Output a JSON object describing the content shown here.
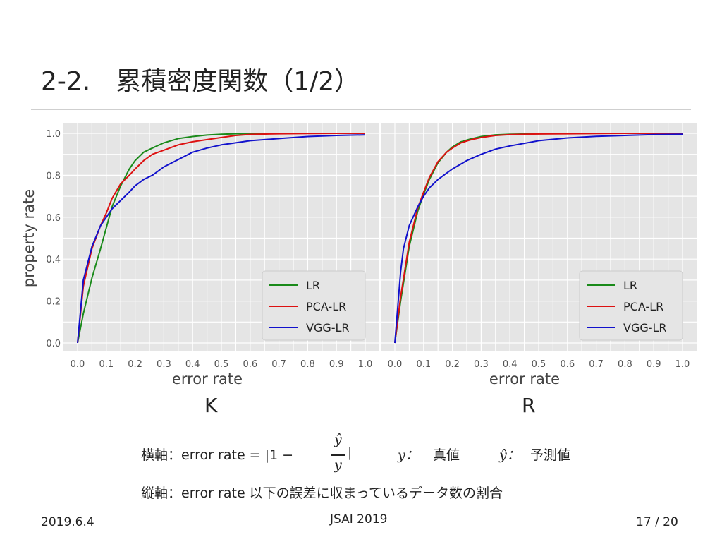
{
  "slide": {
    "title": "2-2.　累積密度関数（1/2）",
    "footer_date": "2019.6.4",
    "footer_conf": "JSAI 2019",
    "footer_page": "17 / 20"
  },
  "panels": {
    "left_label": "K",
    "right_label": "R"
  },
  "notes": {
    "x_axis_prefix": "横軸：error rate = |1 −",
    "x_axis_close": "|",
    "frac_num": "ŷ",
    "frac_den": "y",
    "y_symbol": "y：",
    "y_meaning": "真値",
    "yhat_symbol": "ŷ：",
    "yhat_meaning": "予測値",
    "y_axis_desc": "縦軸：error rate 以下の誤差に収まっているデータ数の割合"
  },
  "chart_data": [
    {
      "type": "line",
      "xlabel": "error rate",
      "ylabel": "property rate",
      "xlim": [
        0.0,
        1.0
      ],
      "ylim": [
        0.0,
        1.0
      ],
      "xticks": [
        "0.0",
        "0.1",
        "0.2",
        "0.3",
        "0.4",
        "0.5",
        "0.6",
        "0.7",
        "0.8",
        "0.9",
        "1.0"
      ],
      "yticks": [
        "0.0",
        "0.2",
        "0.4",
        "0.6",
        "0.8",
        "1.0"
      ],
      "grid": true,
      "legend": "bottom-right",
      "series": [
        {
          "name": "LR",
          "color": "#1a8a1a",
          "x": [
            0,
            0.02,
            0.05,
            0.08,
            0.1,
            0.12,
            0.15,
            0.18,
            0.2,
            0.23,
            0.26,
            0.3,
            0.35,
            0.4,
            0.45,
            0.5,
            0.55,
            0.6,
            0.7,
            0.8,
            0.9,
            1.0
          ],
          "y": [
            0,
            0.14,
            0.31,
            0.45,
            0.55,
            0.65,
            0.75,
            0.83,
            0.87,
            0.91,
            0.93,
            0.955,
            0.975,
            0.985,
            0.992,
            0.996,
            0.998,
            0.999,
            1.0,
            1.0,
            1.0,
            1.0
          ]
        },
        {
          "name": "PCA-LR",
          "color": "#dd1111",
          "x": [
            0,
            0.02,
            0.05,
            0.08,
            0.1,
            0.12,
            0.15,
            0.18,
            0.2,
            0.23,
            0.26,
            0.3,
            0.35,
            0.4,
            0.45,
            0.5,
            0.55,
            0.6,
            0.7,
            0.8,
            0.9,
            1.0
          ],
          "y": [
            0,
            0.27,
            0.45,
            0.56,
            0.62,
            0.69,
            0.76,
            0.8,
            0.83,
            0.87,
            0.9,
            0.92,
            0.945,
            0.96,
            0.97,
            0.98,
            0.99,
            0.995,
            0.998,
            0.999,
            1.0,
            1.0
          ]
        },
        {
          "name": "VGG-LR",
          "color": "#1111cc",
          "x": [
            0,
            0.02,
            0.05,
            0.08,
            0.1,
            0.12,
            0.15,
            0.18,
            0.2,
            0.23,
            0.26,
            0.3,
            0.35,
            0.4,
            0.45,
            0.5,
            0.55,
            0.6,
            0.7,
            0.8,
            0.9,
            1.0
          ],
          "y": [
            0,
            0.3,
            0.46,
            0.56,
            0.6,
            0.64,
            0.68,
            0.72,
            0.75,
            0.78,
            0.8,
            0.84,
            0.875,
            0.91,
            0.93,
            0.945,
            0.955,
            0.965,
            0.975,
            0.985,
            0.99,
            0.993
          ]
        }
      ]
    },
    {
      "type": "line",
      "xlabel": "error rate",
      "ylabel": "",
      "xlim": [
        0.0,
        1.0
      ],
      "ylim": [
        0.0,
        1.0
      ],
      "xticks": [
        "0.0",
        "0.1",
        "0.2",
        "0.3",
        "0.4",
        "0.5",
        "0.6",
        "0.7",
        "0.8",
        "0.9",
        "1.0"
      ],
      "yticks": [],
      "grid": true,
      "legend": "bottom-right",
      "series": [
        {
          "name": "LR",
          "color": "#1a8a1a",
          "x": [
            0,
            0.02,
            0.05,
            0.08,
            0.1,
            0.12,
            0.15,
            0.18,
            0.2,
            0.23,
            0.26,
            0.3,
            0.35,
            0.4,
            0.5,
            0.6,
            0.7,
            0.8,
            0.9,
            1.0
          ],
          "y": [
            0,
            0.2,
            0.46,
            0.63,
            0.71,
            0.78,
            0.86,
            0.91,
            0.935,
            0.96,
            0.972,
            0.985,
            0.993,
            0.996,
            0.998,
            0.999,
            1.0,
            1.0,
            1.0,
            1.0
          ]
        },
        {
          "name": "PCA-LR",
          "color": "#dd1111",
          "x": [
            0,
            0.02,
            0.05,
            0.08,
            0.1,
            0.12,
            0.15,
            0.18,
            0.2,
            0.23,
            0.26,
            0.3,
            0.35,
            0.4,
            0.5,
            0.6,
            0.7,
            0.8,
            0.9,
            1.0
          ],
          "y": [
            0,
            0.22,
            0.48,
            0.645,
            0.72,
            0.79,
            0.865,
            0.91,
            0.93,
            0.955,
            0.968,
            0.98,
            0.99,
            0.994,
            0.997,
            0.998,
            0.999,
            1.0,
            1.0,
            1.0
          ]
        },
        {
          "name": "VGG-LR",
          "color": "#1111cc",
          "x": [
            0,
            0.02,
            0.03,
            0.05,
            0.08,
            0.1,
            0.12,
            0.15,
            0.18,
            0.2,
            0.25,
            0.3,
            0.35,
            0.4,
            0.5,
            0.6,
            0.7,
            0.8,
            0.9,
            1.0
          ],
          "y": [
            0,
            0.34,
            0.45,
            0.56,
            0.65,
            0.7,
            0.74,
            0.78,
            0.81,
            0.83,
            0.87,
            0.9,
            0.925,
            0.94,
            0.965,
            0.978,
            0.986,
            0.99,
            0.994,
            0.996
          ]
        }
      ]
    }
  ]
}
